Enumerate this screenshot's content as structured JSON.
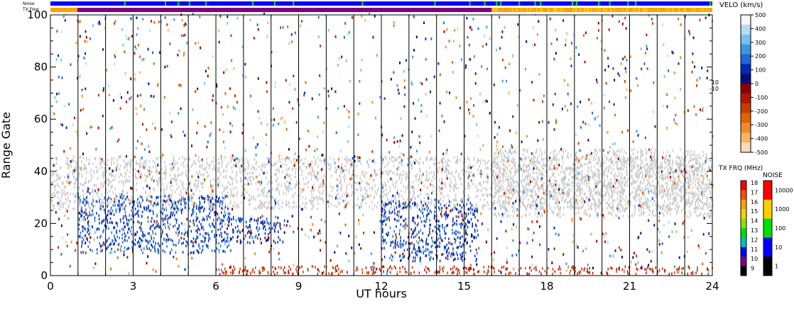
{
  "chart_data": {
    "type": "heatmap",
    "title": "",
    "xlabel": "UT hours",
    "ylabel": "Range Gate",
    "xlim": [
      0,
      24
    ],
    "ylim": [
      0,
      100
    ],
    "x_ticks": [
      0,
      3,
      6,
      9,
      12,
      15,
      18,
      21,
      24
    ],
    "y_ticks": [
      0,
      20,
      40,
      60,
      80,
      100
    ],
    "grid": "vertical lines at each UT hour",
    "top_strips": {
      "noise_label": "Noise",
      "txfreq_label": "TX Freq"
    },
    "velocity_scale": {
      "title": "VELO (km/s)",
      "ticks": [
        "500",
        "400",
        "300",
        "200",
        "100",
        "0",
        "-100",
        "-200",
        "-300",
        "-400",
        "-500"
      ],
      "side_labels": [
        "10",
        "-10"
      ],
      "colors": [
        "#f6f6ff",
        "#b4dcf4",
        "#78c0ec",
        "#3c96e2",
        "#1e6ad8",
        "#0028b4",
        "#001078",
        "#8c0000",
        "#b41400",
        "#c83c00",
        "#e06400",
        "#f08c28",
        "#f8b464",
        "#fcdcb4"
      ]
    },
    "txfreq_scale": {
      "title": "TX FRQ (MHz)",
      "ticks": [
        "18",
        "17",
        "16",
        "15",
        "14",
        "13",
        "12",
        "11",
        "10",
        "9"
      ],
      "colors": [
        "#ff0000",
        "#ff5000",
        "#ffa000",
        "#ffd000",
        "#90e000",
        "#00e000",
        "#00c0c0",
        "#0000ff",
        "#800080",
        "#000000"
      ]
    },
    "noise_scale": {
      "title": "NOISE",
      "ticks": [
        "10000",
        "1000",
        "100",
        "10",
        "1"
      ],
      "colors": [
        "#ff0000",
        "#ffd000",
        "#00e000",
        "#0000ff",
        "#000000"
      ]
    },
    "scatter_regions": [
      {
        "name": "ground scatter band",
        "x_range": [
          0,
          24
        ],
        "y_range": [
          25,
          45
        ],
        "velocity": "ground"
      },
      {
        "name": "negative velocity near range",
        "x_range": [
          6,
          24
        ],
        "y_range": [
          0,
          3
        ],
        "velocity": -150
      },
      {
        "name": "positive velocity echoes",
        "x_range": [
          1,
          6.5
        ],
        "y_range": [
          8,
          30
        ],
        "velocity": 150
      },
      {
        "name": "positive velocity echoes",
        "x_range": [
          6.5,
          8.5
        ],
        "y_range": [
          12,
          22
        ],
        "velocity": 120
      },
      {
        "name": "positive velocity echoes",
        "x_range": [
          12,
          15.5
        ],
        "y_range": [
          5,
          28
        ],
        "velocity": 130
      },
      {
        "name": "ground scatter band",
        "x_range": [
          16,
          24
        ],
        "y_range": [
          22,
          48
        ],
        "velocity": "ground"
      }
    ]
  }
}
